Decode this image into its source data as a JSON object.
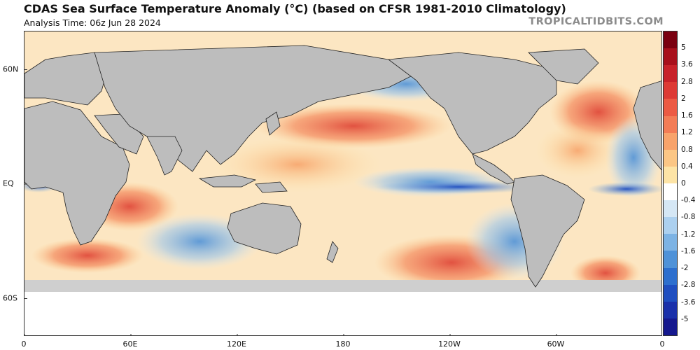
{
  "header": {
    "title": "CDAS Sea Surface Temperature Anomaly (°C) (based on CFSR 1981-2010 Climatology)",
    "analysis_time": "Analysis Time: 06z Jun 28 2024",
    "brand": "TROPICALTIDBITS.COM"
  },
  "map": {
    "lat_labels": [
      {
        "text": "60N",
        "lat": 60
      },
      {
        "text": "EQ",
        "lat": 0
      },
      {
        "text": "60S",
        "lat": -60
      }
    ],
    "lon_labels": [
      {
        "text": "0",
        "lon": 0
      },
      {
        "text": "60E",
        "lon": 60
      },
      {
        "text": "120E",
        "lon": 120
      },
      {
        "text": "180",
        "lon": 180
      },
      {
        "text": "120W",
        "lon": 240
      },
      {
        "text": "60W",
        "lon": 300
      },
      {
        "text": "0",
        "lon": 360
      }
    ],
    "lat_range": [
      -80,
      80
    ],
    "lon_range": [
      0,
      360
    ],
    "land_color": "#bdbdbd",
    "ice_color": "#ffffff"
  },
  "colorbar": {
    "levels": [
      "5",
      "3.6",
      "2.8",
      "2",
      "1.6",
      "1.2",
      "0.8",
      "0.4",
      "0",
      "-0.4",
      "-0.8",
      "-1.2",
      "-1.6",
      "-2",
      "-2.8",
      "-3.6",
      "-5"
    ],
    "colors": [
      "#7a0010",
      "#a8101c",
      "#c8222a",
      "#dd3a35",
      "#ec5a44",
      "#f37c56",
      "#f8a36b",
      "#fbc685",
      "#fde4a6",
      "#ffffff",
      "#d5e7f5",
      "#acd0ef",
      "#7db3e4",
      "#4f92d8",
      "#2d6fce",
      "#1f4ec0",
      "#1a30aa",
      "#15188e"
    ]
  }
}
